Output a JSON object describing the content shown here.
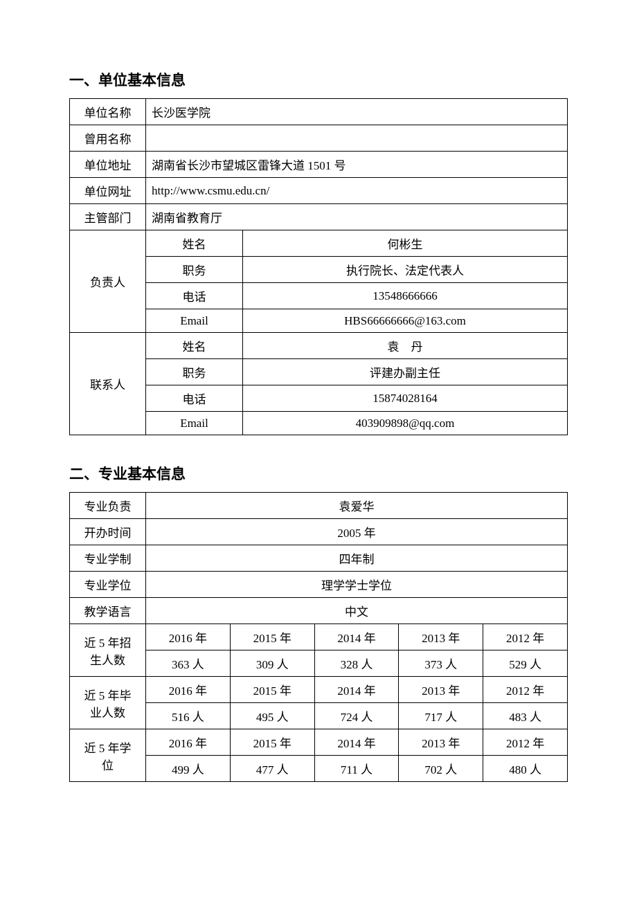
{
  "section1": {
    "title": "一、单位基本信息",
    "rows": {
      "unit_name_label": "单位名称",
      "unit_name_value": "长沙医学院",
      "former_name_label": "曾用名称",
      "former_name_value": "",
      "address_label": "单位地址",
      "address_value": "湖南省长沙市望城区雷锋大道 1501 号",
      "website_label": "单位网址",
      "website_value": "http://www.csmu.edu.cn/",
      "dept_label": "主管部门",
      "dept_value": "湖南省教育厅"
    },
    "person_in_charge": {
      "label": "负责人",
      "name_label": "姓名",
      "name_value": "何彬生",
      "title_label": "职务",
      "title_value": "执行院长、法定代表人",
      "phone_label": "电话",
      "phone_value": "13548666666",
      "email_label": "Email",
      "email_value": "HBS66666666@163.com"
    },
    "contact": {
      "label": "联系人",
      "name_label": "姓名",
      "name_value": "袁　丹",
      "title_label": "职务",
      "title_value": "评建办副主任",
      "phone_label": "电话",
      "phone_value": "15874028164",
      "email_label": "Email",
      "email_value": "403909898@qq.com"
    }
  },
  "section2": {
    "title": "二、专业基本信息",
    "rows": {
      "leader_label": "专业负责",
      "leader_value": "袁爱华",
      "start_label": "开办时间",
      "start_value": "2005 年",
      "system_label": "专业学制",
      "system_value": "四年制",
      "degree_label": "专业学位",
      "degree_value": "理学学士学位",
      "lang_label": "教学语言",
      "lang_value": "中文"
    },
    "enrollment": {
      "label_line1": "近 5 年招",
      "label_line2": "生人数",
      "years": [
        "2016 年",
        "2015 年",
        "2014 年",
        "2013 年",
        "2012 年"
      ],
      "values": [
        "363 人",
        "309 人",
        "328 人",
        "373 人",
        "529 人"
      ]
    },
    "graduates": {
      "label_line1": "近 5 年毕",
      "label_line2": "业人数",
      "years": [
        "2016 年",
        "2015 年",
        "2014 年",
        "2013 年",
        "2012 年"
      ],
      "values": [
        "516 人",
        "495 人",
        "724 人",
        "717 人",
        "483 人"
      ]
    },
    "degrees": {
      "label_line1": "近 5 年学",
      "label_line2": "位",
      "years": [
        "2016 年",
        "2015 年",
        "2014 年",
        "2013 年",
        "2012 年"
      ],
      "values": [
        "499 人",
        "477 人",
        "711 人",
        "702 人",
        "480 人"
      ]
    }
  }
}
